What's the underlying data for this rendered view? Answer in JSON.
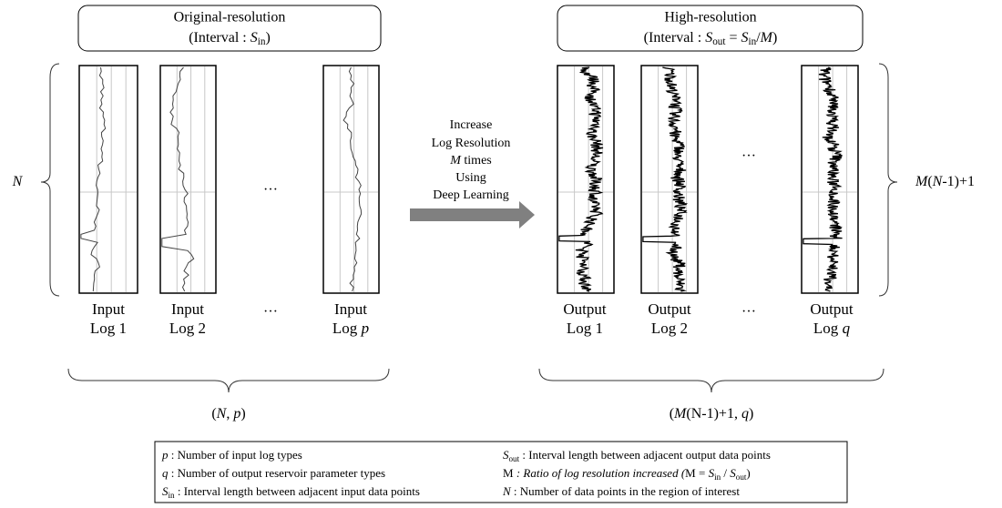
{
  "left_header": {
    "title": "Original-resolution",
    "interval": [
      "(Interval : ",
      "S",
      "in",
      ")"
    ]
  },
  "right_header": {
    "title": "High-resolution",
    "interval": [
      "(Interval : ",
      "S",
      "out",
      " = ",
      "S",
      "in",
      "/",
      "M",
      ")"
    ]
  },
  "input_rows_label": [
    "N"
  ],
  "output_rows_label": [
    "M",
    "(",
    "N",
    "-1)+1"
  ],
  "inputs": [
    {
      "line1": "Input",
      "line2": [
        "Log 1"
      ]
    },
    {
      "line1": "Input",
      "line2": [
        "Log 2"
      ]
    },
    {
      "line1": "Input",
      "line2": [
        "Log ",
        "p"
      ]
    }
  ],
  "outputs": [
    {
      "line1": "Output",
      "line2": [
        "Log 1"
      ]
    },
    {
      "line1": "Output",
      "line2": [
        "Log 2"
      ]
    },
    {
      "line1": "Output",
      "line2": [
        "Log ",
        "q"
      ]
    }
  ],
  "ellipses": [
    "…",
    "…",
    "…",
    "…"
  ],
  "process": [
    [
      "Increase"
    ],
    [
      "Log Resolution"
    ],
    [
      "M",
      " times"
    ],
    [
      "Using"
    ],
    [
      "Deep Learning"
    ]
  ],
  "input_shape": [
    "(",
    "N",
    ", ",
    "p",
    ")"
  ],
  "output_shape": [
    "(",
    "M",
    "(",
    "N",
    "-1)+1, ",
    "q",
    ")"
  ],
  "legend": {
    "left": [
      [
        "p",
        " : Number of input log types"
      ],
      [
        "q",
        " : Number of output reservoir parameter types"
      ],
      [
        "S",
        "in",
        " : Interval length between adjacent input data points"
      ]
    ],
    "right": [
      [
        "S",
        "out",
        " : Interval length between adjacent output data points"
      ],
      [
        "M",
        " : Ratio of log resolution increased (",
        "M",
        " = ",
        "S",
        "in",
        " / ",
        "S",
        "out",
        ")"
      ],
      [
        "N",
        " : Number of data points in the region of interest"
      ]
    ]
  }
}
